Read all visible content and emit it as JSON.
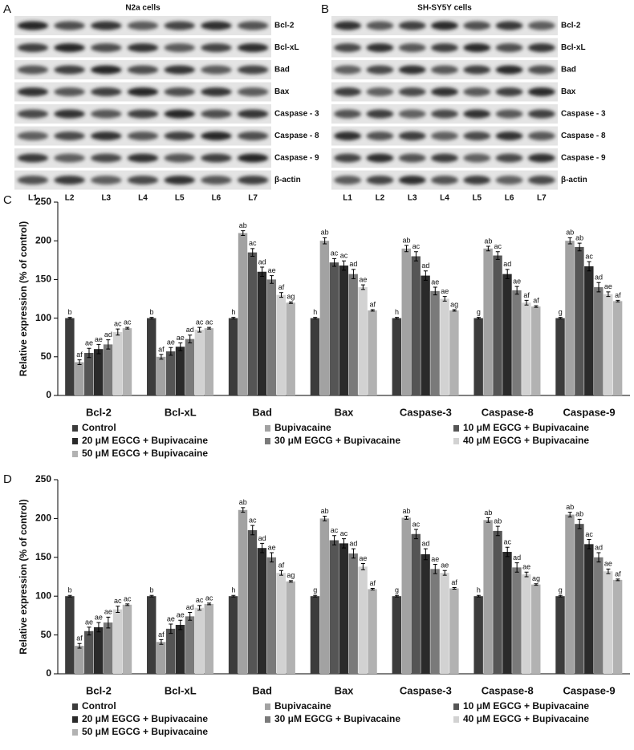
{
  "blots": [
    {
      "panel": "A",
      "title": "N2a cells",
      "rows": [
        "Bcl-2",
        "Bcl-xL",
        "Bad",
        "Bax",
        "Caspase - 3",
        "Caspase - 8",
        "Caspase - 9",
        "β-actin"
      ],
      "lanes": [
        "L1",
        "L2",
        "L3",
        "L4",
        "L5",
        "L6",
        "L7"
      ]
    },
    {
      "panel": "B",
      "title": "SH-SY5Y  cells",
      "rows": [
        "Bcl-2",
        "Bcl-xL",
        "Bad",
        "Bax",
        "Caspase - 3",
        "Caspase - 8",
        "Caspase - 9",
        "β-actin"
      ],
      "lanes": [
        "L1",
        "L2",
        "L3",
        "L4",
        "L5",
        "L6",
        "L7"
      ]
    }
  ],
  "chart_data": [
    {
      "type": "bar",
      "panel": "C",
      "y_label": "Relative expression (% of control)",
      "categories": [
        "Bcl-2",
        "Bcl-xL",
        "Bad",
        "Bax",
        "Caspase-3",
        "Caspase-8",
        "Caspase-9"
      ],
      "ylim": [
        0,
        250
      ],
      "yticks": [
        0,
        50,
        100,
        150,
        200,
        250
      ],
      "series": [
        {
          "name": "Control",
          "color": "#3c3c3c",
          "values": [
            100,
            100,
            100,
            100,
            100,
            100,
            100
          ],
          "errors": [
            1,
            1,
            1,
            1,
            1,
            1,
            1
          ],
          "sig_labels": [
            "b",
            "b",
            "h",
            "h",
            "h",
            "g",
            "g"
          ]
        },
        {
          "name": "Bupivacaine",
          "color": "#a2a2a2",
          "values": [
            43,
            50,
            210,
            200,
            190,
            190,
            200
          ],
          "errors": [
            3,
            3,
            3,
            4,
            4,
            3,
            4
          ],
          "sig_labels": [
            "af",
            "af",
            "ab",
            "ab",
            "ab",
            "ab",
            "ab"
          ]
        },
        {
          "name": "10 μM EGCG + Bupivacaine",
          "color": "#555555",
          "values": [
            55,
            57,
            185,
            172,
            180,
            181,
            192
          ],
          "errors": [
            6,
            5,
            5,
            5,
            6,
            5,
            5
          ],
          "sig_labels": [
            "ae",
            "ae",
            "ac",
            "ac",
            "ac",
            "ac",
            "ab"
          ]
        },
        {
          "name": "20 μM EGCG + Bupivacaine",
          "color": "#2a2a2a",
          "values": [
            60,
            63,
            160,
            168,
            155,
            157,
            167
          ],
          "errors": [
            6,
            5,
            6,
            6,
            6,
            6,
            6
          ],
          "sig_labels": [
            "ae",
            "ae",
            "ad",
            "ac",
            "ad",
            "ad",
            "ac"
          ]
        },
        {
          "name": "30 μM EGCG + Bupivacaine",
          "color": "#7a7a7a",
          "values": [
            66,
            73,
            150,
            157,
            135,
            136,
            140
          ],
          "errors": [
            6,
            5,
            5,
            6,
            5,
            5,
            6
          ],
          "sig_labels": [
            "ad",
            "ad",
            "ae",
            "ad",
            "ae",
            "ae",
            "ad"
          ]
        },
        {
          "name": "40 μM EGCG + Bupivacaine",
          "color": "#d2d2d2",
          "values": [
            82,
            85,
            130,
            140,
            125,
            120,
            131
          ],
          "errors": [
            4,
            3,
            3,
            3,
            3,
            3,
            3
          ],
          "sig_labels": [
            "ac",
            "ac",
            "af",
            "ae",
            "ae",
            "af",
            "ae"
          ]
        },
        {
          "name": "50 μM EGCG + Bupivacaine",
          "color": "#b2b2b2",
          "values": [
            87,
            87,
            120,
            110,
            110,
            115,
            122
          ],
          "errors": [
            1,
            1,
            1,
            1,
            1,
            1,
            1
          ],
          "sig_labels": [
            "ac",
            "ac",
            "ag",
            "af",
            "ag",
            "af",
            "af"
          ]
        }
      ]
    },
    {
      "type": "bar",
      "panel": "D",
      "y_label": "Relative expression (% of control)",
      "categories": [
        "Bcl-2",
        "Bcl-xL",
        "Bad",
        "Bax",
        "Caspase-3",
        "Caspase-8",
        "Caspase-9"
      ],
      "ylim": [
        0,
        250
      ],
      "yticks": [
        0,
        50,
        100,
        150,
        200,
        250
      ],
      "series": [
        {
          "name": "Control",
          "color": "#3c3c3c",
          "values": [
            100,
            100,
            100,
            100,
            100,
            100,
            100
          ],
          "errors": [
            1,
            1,
            1,
            1,
            1,
            1,
            1
          ],
          "sig_labels": [
            "b",
            "b",
            "h",
            "g",
            "g",
            "h",
            "g"
          ]
        },
        {
          "name": "Bupivacaine",
          "color": "#a2a2a2",
          "values": [
            36,
            41,
            211,
            200,
            201,
            198,
            205
          ],
          "errors": [
            3,
            3,
            3,
            3,
            2,
            3,
            3
          ],
          "sig_labels": [
            "af",
            "af",
            "ab",
            "ab",
            "ab",
            "ab",
            "ab"
          ]
        },
        {
          "name": "10 μM EGCG + Bupivacaine",
          "color": "#555555",
          "values": [
            55,
            58,
            185,
            172,
            180,
            184,
            193
          ],
          "errors": [
            5,
            6,
            6,
            6,
            6,
            6,
            6
          ],
          "sig_labels": [
            "ae",
            "ae",
            "ac",
            "ac",
            "ac",
            "ab",
            "ab"
          ]
        },
        {
          "name": "20 μM EGCG + Bupivacaine",
          "color": "#2a2a2a",
          "values": [
            60,
            63,
            162,
            168,
            154,
            157,
            167
          ],
          "errors": [
            6,
            6,
            6,
            6,
            7,
            6,
            6
          ],
          "sig_labels": [
            "ae",
            "ae",
            "ad",
            "ac",
            "ad",
            "ac",
            "ac"
          ]
        },
        {
          "name": "30 μM EGCG + Bupivacaine",
          "color": "#7a7a7a",
          "values": [
            66,
            74,
            150,
            155,
            135,
            137,
            150
          ],
          "errors": [
            7,
            5,
            6,
            6,
            6,
            6,
            6
          ],
          "sig_labels": [
            "ae",
            "ad",
            "ae",
            "ad",
            "ae",
            "ad",
            "ad"
          ]
        },
        {
          "name": "40 μM EGCG + Bupivacaine",
          "color": "#d2d2d2",
          "values": [
            83,
            85,
            130,
            138,
            130,
            128,
            132
          ],
          "errors": [
            4,
            3,
            3,
            4,
            3,
            3,
            3
          ],
          "sig_labels": [
            "ac",
            "ac",
            "af",
            "ae",
            "ae",
            "ae",
            "ae"
          ]
        },
        {
          "name": "50 μM EGCG + Bupivacaine",
          "color": "#b2b2b2",
          "values": [
            89,
            90,
            119,
            109,
            110,
            115,
            121
          ],
          "errors": [
            1,
            1,
            1,
            1,
            1,
            1,
            1
          ],
          "sig_labels": [
            "ac",
            "ac",
            "ag",
            "af",
            "af",
            "ag",
            "af"
          ]
        }
      ]
    }
  ]
}
